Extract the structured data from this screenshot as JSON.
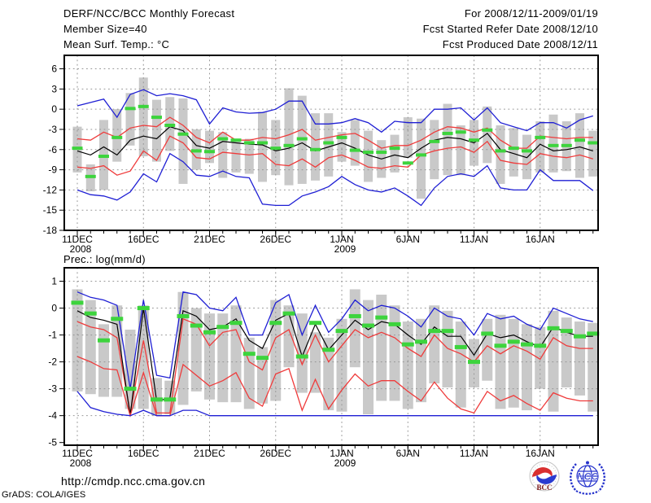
{
  "header": {
    "title": "DERF/NCC/BCC Monthly Forecast",
    "member_size": "Member Size=40",
    "temp_panel_label": "Mean Surf. Temp.: °C",
    "forecast_range": "For 2008/12/11-2009/01/19",
    "refer_date": "Fcst Started Refer Date 2008/12/10",
    "produced_date": "Fcst Produced Date 2008/12/11"
  },
  "panels": {
    "prec_label": "Prec.: log(mm/d)"
  },
  "footer": {
    "url": "http://cmdp.ncc.cma.gov.cn",
    "grads_credit": "GrADS: COLA/IGES",
    "logos": [
      {
        "name": "BCC",
        "label": "BCC"
      },
      {
        "name": "NCC",
        "label": "NCC"
      }
    ]
  },
  "colors": {
    "frame": "#000000",
    "grid": "#969696",
    "bar": "#c9c9c9",
    "blue": "#1f1fd4",
    "red": "#ef3b3b",
    "black": "#000000",
    "green": "#3dd43d"
  },
  "chart_data": [
    {
      "type": "line",
      "title": "Mean Surf. Temp.: °C",
      "ylabel": "degC",
      "ylim": [
        -18,
        8
      ],
      "yticks": [
        6,
        3,
        0,
        -3,
        -6,
        -9,
        -12,
        -15,
        -18
      ],
      "grid": "dotted",
      "n_days": 40,
      "x_ticks": [
        {
          "d": 0,
          "label": "11DEC",
          "year": "2008"
        },
        {
          "d": 5,
          "label": "16DEC"
        },
        {
          "d": 10,
          "label": "21DEC"
        },
        {
          "d": 15,
          "label": "26DEC"
        },
        {
          "d": 20,
          "label": "1JAN",
          "year": "2009"
        },
        {
          "d": 25,
          "label": "6JAN"
        },
        {
          "d": 30,
          "label": "11JAN"
        },
        {
          "d": 35,
          "label": "16JAN"
        }
      ],
      "series": [
        {
          "name": "ensemble-max",
          "color": "#1f1fd4",
          "values": [
            0.5,
            1.0,
            1.5,
            -1.2,
            2.2,
            2.9,
            2.0,
            2.3,
            2.0,
            1.4,
            -2.2,
            0.2,
            -0.4,
            -0.6,
            -0.5,
            0.0,
            1.2,
            1.2,
            -2.2,
            -2.2,
            -2.0,
            -1.4,
            -2.0,
            -3.4,
            -1.8,
            -2.0,
            -2.0,
            0.0,
            0.0,
            0.2,
            -1.6,
            0.2,
            -2.0,
            -2.6,
            -3.2,
            -2.0,
            -2.0,
            -2.8,
            -1.6,
            -1.0
          ]
        },
        {
          "name": "spread-upper",
          "color": "#ef3b3b",
          "values": [
            -4.4,
            -4.6,
            -3.4,
            -4.2,
            -2.8,
            -2.4,
            -2.6,
            -1.2,
            -2.4,
            -4.2,
            -5.0,
            -3.4,
            -4.6,
            -4.6,
            -4.2,
            -4.4,
            -3.8,
            -3.0,
            -4.6,
            -4.2,
            -3.8,
            -3.6,
            -4.6,
            -5.8,
            -5.4,
            -5.4,
            -4.6,
            -3.4,
            -2.6,
            -2.8,
            -3.4,
            -2.8,
            -4.6,
            -5.8,
            -5.8,
            -4.0,
            -4.2,
            -4.4,
            -4.2,
            -4.2
          ]
        },
        {
          "name": "ensemble-mean",
          "color": "#000000",
          "values": [
            -6.2,
            -6.8,
            -5.6,
            -6.8,
            -4.6,
            -4.0,
            -4.4,
            -2.6,
            -3.2,
            -5.4,
            -5.8,
            -4.8,
            -5.0,
            -5.2,
            -5.3,
            -6.2,
            -5.8,
            -5.0,
            -6.2,
            -5.6,
            -5.0,
            -5.8,
            -6.8,
            -7.4,
            -6.8,
            -7.2,
            -5.8,
            -4.6,
            -4.2,
            -4.4,
            -5.0,
            -3.6,
            -6.0,
            -6.6,
            -7.2,
            -5.2,
            -6.2,
            -6.0,
            -5.6,
            -6.2
          ]
        },
        {
          "name": "spread-lower",
          "color": "#ef3b3b",
          "values": [
            -8.6,
            -8.8,
            -8.4,
            -9.8,
            -9.2,
            -6.2,
            -7.6,
            -4.0,
            -5.0,
            -7.2,
            -7.4,
            -6.4,
            -6.6,
            -6.8,
            -6.6,
            -8.2,
            -8.4,
            -7.4,
            -8.6,
            -7.2,
            -6.8,
            -7.6,
            -8.6,
            -8.8,
            -8.4,
            -8.6,
            -6.8,
            -6.2,
            -5.8,
            -5.6,
            -6.4,
            -4.8,
            -7.6,
            -8.0,
            -8.2,
            -6.6,
            -7.0,
            -7.2,
            -6.8,
            -7.4
          ]
        },
        {
          "name": "ensemble-min",
          "color": "#1f1fd4",
          "values": [
            -12.0,
            -12.7,
            -12.9,
            -13.5,
            -12.3,
            -9.6,
            -10.8,
            -6.6,
            -7.8,
            -9.8,
            -10.0,
            -9.2,
            -10.0,
            -10.2,
            -14.1,
            -14.3,
            -14.3,
            -12.9,
            -12.3,
            -11.5,
            -10.0,
            -11.2,
            -12.0,
            -12.3,
            -11.7,
            -12.9,
            -14.3,
            -11.7,
            -10.0,
            -9.6,
            -10.0,
            -8.4,
            -11.7,
            -12.0,
            -12.0,
            -9.0,
            -10.6,
            -10.6,
            -10.6,
            -12.1
          ]
        }
      ],
      "markers": {
        "name": "observation",
        "color": "#3dd43d",
        "values": [
          -5.8,
          -10.0,
          -7.0,
          -4.2,
          0.1,
          0.4,
          -1.2,
          -2.4,
          -3.7,
          -6.2,
          -6.3,
          -4.4,
          -4.6,
          -5.0,
          -5.0,
          -5.8,
          -5.4,
          -4.4,
          -6.0,
          -5.0,
          -4.2,
          -6.1,
          -6.4,
          -6.4,
          -5.8,
          -8.0,
          -6.8,
          -4.8,
          -3.6,
          -3.4,
          -4.6,
          -3.1,
          -6.2,
          -5.8,
          -6.2,
          -4.2,
          -5.4,
          -5.4,
          -4.6,
          -5.0
        ]
      },
      "bars": {
        "name": "member-range",
        "color": "#c9c9c9",
        "top": [
          -2.6,
          -8.2,
          -1.6,
          0.0,
          2.4,
          4.7,
          1.4,
          1.8,
          1.6,
          -3.0,
          -3.2,
          -3.4,
          -4.6,
          -4.4,
          -0.4,
          -1.6,
          3.1,
          2.0,
          -0.6,
          -0.6,
          -3.4,
          -1.6,
          -3.2,
          -4.6,
          -3.8,
          -1.2,
          -1.4,
          -1.6,
          0.8,
          -2.4,
          -1.6,
          0.4,
          -2.4,
          -2.8,
          -3.8,
          -1.8,
          -0.8,
          -1.8,
          -0.6,
          -3.2
        ],
        "bottom": [
          -9.4,
          -12.2,
          -12.0,
          -7.8,
          -5.4,
          -7.0,
          -7.8,
          -6.2,
          -11.1,
          -9.0,
          -8.0,
          -10.2,
          -9.4,
          -9.6,
          -10.8,
          -9.8,
          -11.3,
          -11.1,
          -10.6,
          -10.0,
          -7.8,
          -8.4,
          -10.8,
          -10.2,
          -9.4,
          -7.2,
          -13.3,
          -10.4,
          -9.8,
          -9.8,
          -8.4,
          -8.0,
          -11.1,
          -10.0,
          -10.4,
          -9.4,
          -9.4,
          -9.2,
          -10.2,
          -10.0
        ]
      }
    },
    {
      "type": "line",
      "title": "Prec.: log(mm/d)",
      "ylabel": "log(mm/d)",
      "ylim": [
        -5,
        1.5
      ],
      "yticks": [
        1,
        0,
        -1,
        -2,
        -3,
        -4,
        -5
      ],
      "grid": "dotted",
      "n_days": 40,
      "x_ticks": [
        {
          "d": 0,
          "label": "11DEC",
          "year": "2008"
        },
        {
          "d": 5,
          "label": "16DEC"
        },
        {
          "d": 10,
          "label": "21DEC"
        },
        {
          "d": 15,
          "label": "26DEC"
        },
        {
          "d": 20,
          "label": "1JAN",
          "year": "2009"
        },
        {
          "d": 25,
          "label": "6JAN"
        },
        {
          "d": 30,
          "label": "11JAN"
        },
        {
          "d": 35,
          "label": "16JAN"
        }
      ],
      "series": [
        {
          "name": "ensemble-max",
          "color": "#1f1fd4",
          "values": [
            0.6,
            0.4,
            0.3,
            0.1,
            -3.0,
            0.3,
            -2.5,
            -2.6,
            0.6,
            0.5,
            0.0,
            -0.1,
            0.4,
            -1.0,
            -1.0,
            0.2,
            0.5,
            -1.0,
            0.1,
            -0.9,
            -0.4,
            0.3,
            -0.1,
            0.1,
            0.0,
            -0.3,
            -0.7,
            0.0,
            -0.3,
            -0.4,
            -1.0,
            -0.2,
            -0.4,
            -0.3,
            -0.6,
            -0.8,
            0.0,
            -0.2,
            -0.4,
            -0.5
          ]
        },
        {
          "name": "spread-upper",
          "color": "#ef3b3b",
          "values": [
            -0.5,
            -0.7,
            -0.8,
            -1.1,
            -3.9,
            -1.2,
            -3.9,
            -3.9,
            -0.4,
            -0.6,
            -1.4,
            -0.9,
            -0.8,
            -2.0,
            -2.3,
            -1.1,
            -0.8,
            -2.1,
            -1.0,
            -2.0,
            -1.4,
            -0.8,
            -1.1,
            -0.9,
            -1.1,
            -1.5,
            -1.8,
            -1.0,
            -1.5,
            -1.7,
            -2.0,
            -1.4,
            -1.7,
            -1.4,
            -1.6,
            -1.9,
            -1.1,
            -1.4,
            -1.5,
            -1.5
          ]
        },
        {
          "name": "ensemble-mean",
          "color": "#000000",
          "values": [
            -0.1,
            -0.35,
            -0.45,
            -0.6,
            -4.0,
            0.0,
            -3.45,
            -3.35,
            -0.1,
            -0.3,
            -0.8,
            -0.7,
            -0.4,
            -1.2,
            -1.5,
            -0.45,
            -0.2,
            -1.8,
            -0.6,
            -1.55,
            -1.0,
            -0.45,
            -0.8,
            -0.5,
            -0.6,
            -1.0,
            -1.35,
            -0.7,
            -1.05,
            -1.05,
            -1.75,
            -0.95,
            -1.1,
            -1.0,
            -1.25,
            -1.45,
            -0.7,
            -0.9,
            -1.05,
            -1.05
          ]
        },
        {
          "name": "spread-lower",
          "color": "#ef3b3b",
          "values": [
            -1.8,
            -2.0,
            -2.25,
            -2.3,
            -4.0,
            -2.4,
            -4.0,
            -4.0,
            -2.1,
            -2.5,
            -2.9,
            -2.7,
            -2.4,
            -3.35,
            -3.65,
            -2.45,
            -2.25,
            -3.8,
            -2.65,
            -3.75,
            -3.05,
            -2.45,
            -2.9,
            -2.7,
            -2.7,
            -3.1,
            -3.45,
            -2.75,
            -3.35,
            -3.75,
            -3.9,
            -3.1,
            -3.45,
            -3.25,
            -3.55,
            -3.8,
            -3.15,
            -3.35,
            -3.45,
            -3.45
          ]
        },
        {
          "name": "ensemble-min",
          "color": "#1f1fd4",
          "values": [
            -3.1,
            -3.7,
            -3.85,
            -3.95,
            -4,
            -3.8,
            -4,
            -4,
            -3.8,
            -3.8,
            -4,
            -4,
            -4,
            -4,
            -4,
            -4,
            -4,
            -4,
            -4,
            -4,
            -4,
            -4,
            -4,
            -4,
            -4,
            -4,
            -4,
            -4,
            -4,
            -4,
            -4,
            -4,
            -4,
            -4,
            -4,
            -4,
            -4,
            -4,
            -4,
            -4
          ]
        }
      ],
      "markers": {
        "name": "observation",
        "color": "#3dd43d",
        "values": [
          0.2,
          -0.2,
          -1.2,
          -0.4,
          -3.0,
          0.0,
          -3.4,
          -3.4,
          -0.3,
          -0.65,
          -0.9,
          -0.7,
          -0.55,
          -1.7,
          -1.85,
          -0.55,
          -0.2,
          -1.8,
          -0.55,
          -1.55,
          -0.85,
          -0.3,
          -0.65,
          -0.35,
          -0.6,
          -1.35,
          -1.25,
          -0.85,
          -0.85,
          -1.45,
          -2.0,
          -0.95,
          -1.4,
          -1.25,
          -1.35,
          -1.4,
          -0.75,
          -0.85,
          -1.05,
          -0.95
        ]
      },
      "bars": {
        "name": "member-range",
        "color": "#c9c9c9",
        "top": [
          0.7,
          0.3,
          -0.6,
          0.1,
          -0.8,
          0.1,
          -2.6,
          -2.7,
          0.6,
          0.0,
          -0.2,
          -0.2,
          0.1,
          -1.1,
          -1.45,
          0.3,
          0.1,
          -0.2,
          -0.9,
          -1.1,
          -0.4,
          0.7,
          0.3,
          0.5,
          0.1,
          -0.5,
          -0.4,
          0.1,
          -0.1,
          -0.5,
          -1.15,
          -0.4,
          -0.25,
          -0.4,
          -0.6,
          -0.7,
          -0.1,
          -0.35,
          -0.5,
          -0.55
        ],
        "bottom": [
          -3.1,
          -3.2,
          -3.3,
          -3.3,
          -3.75,
          -3.75,
          -4.0,
          -3.95,
          -3.6,
          -3.1,
          -3.4,
          -3.5,
          -3.5,
          -3.75,
          -3.55,
          -3.45,
          -2.2,
          -3.15,
          -3.15,
          -3.8,
          -3.85,
          -2.2,
          -3.95,
          -3.45,
          -3.45,
          -3.75,
          -3.5,
          -2.8,
          -2.95,
          -3.7,
          -2.95,
          -2.7,
          -3.75,
          -3.7,
          -3.8,
          -3.0,
          -3.85,
          -2.95,
          -3.25,
          -3.85
        ]
      }
    }
  ]
}
